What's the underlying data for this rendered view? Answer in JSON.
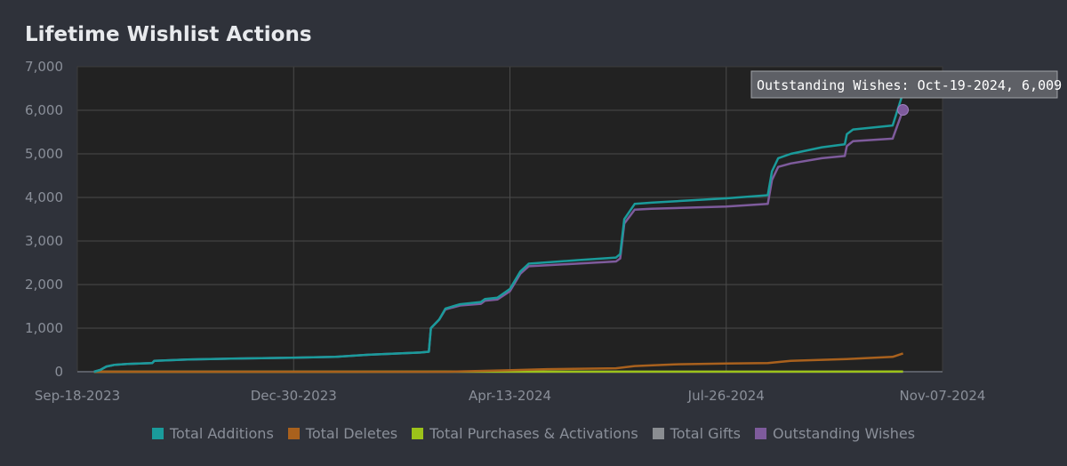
{
  "title": "Lifetime Wishlist Actions",
  "tooltip": "Outstanding Wishes: Oct-19-2024, 6,009",
  "colors": {
    "background": "#2f323a",
    "plot_background": "#222222",
    "grid": "#4a4a4a"
  },
  "chart_data": {
    "type": "line",
    "title": "Lifetime Wishlist Actions",
    "ylim": [
      0,
      7000
    ],
    "y_ticks": [
      "0",
      "1,000",
      "2,000",
      "3,000",
      "4,000",
      "5,000",
      "6,000",
      "7,000"
    ],
    "x_ticks": [
      "Sep-18-2023",
      "Dec-30-2023",
      "Apr-13-2024",
      "Jul-26-2024",
      "Nov-07-2024"
    ],
    "xlim": [
      "2023-09-18",
      "2024-11-07"
    ],
    "grid": true,
    "legend_position": "bottom",
    "series": [
      {
        "name": "Total Additions",
        "color": "#1a9b9b",
        "points": [
          [
            "2023-09-26",
            0
          ],
          [
            "2023-09-29",
            40
          ],
          [
            "2023-10-02",
            120
          ],
          [
            "2023-10-06",
            160
          ],
          [
            "2023-10-12",
            180
          ],
          [
            "2023-10-24",
            200
          ],
          [
            "2023-10-25",
            250
          ],
          [
            "2023-11-10",
            280
          ],
          [
            "2023-12-01",
            300
          ],
          [
            "2023-12-30",
            320
          ],
          [
            "2024-01-20",
            340
          ],
          [
            "2024-02-05",
            390
          ],
          [
            "2024-02-20",
            420
          ],
          [
            "2024-03-01",
            440
          ],
          [
            "2024-03-05",
            460
          ],
          [
            "2024-03-06",
            1000
          ],
          [
            "2024-03-10",
            1200
          ],
          [
            "2024-03-13",
            1450
          ],
          [
            "2024-03-20",
            1550
          ],
          [
            "2024-03-30",
            1600
          ],
          [
            "2024-04-01",
            1670
          ],
          [
            "2024-04-07",
            1700
          ],
          [
            "2024-04-13",
            1900
          ],
          [
            "2024-04-18",
            2300
          ],
          [
            "2024-04-22",
            2480
          ],
          [
            "2024-05-15",
            2560
          ],
          [
            "2024-06-03",
            2620
          ],
          [
            "2024-06-05",
            2700
          ],
          [
            "2024-06-07",
            3500
          ],
          [
            "2024-06-12",
            3850
          ],
          [
            "2024-06-20",
            3880
          ],
          [
            "2024-07-26",
            3980
          ],
          [
            "2024-08-15",
            4050
          ],
          [
            "2024-08-17",
            4600
          ],
          [
            "2024-08-20",
            4900
          ],
          [
            "2024-08-26",
            5000
          ],
          [
            "2024-09-10",
            5150
          ],
          [
            "2024-09-21",
            5220
          ],
          [
            "2024-09-22",
            5450
          ],
          [
            "2024-09-25",
            5560
          ],
          [
            "2024-10-14",
            5650
          ],
          [
            "2024-10-19",
            6400
          ]
        ]
      },
      {
        "name": "Total Deletes",
        "color": "#a9611d",
        "points": [
          [
            "2023-09-26",
            0
          ],
          [
            "2024-03-13",
            0
          ],
          [
            "2024-04-10",
            30
          ],
          [
            "2024-05-01",
            60
          ],
          [
            "2024-06-03",
            80
          ],
          [
            "2024-06-12",
            130
          ],
          [
            "2024-07-01",
            170
          ],
          [
            "2024-07-26",
            190
          ],
          [
            "2024-08-15",
            200
          ],
          [
            "2024-08-26",
            250
          ],
          [
            "2024-09-22",
            290
          ],
          [
            "2024-10-14",
            340
          ],
          [
            "2024-10-19",
            420
          ]
        ]
      },
      {
        "name": "Total Purchases & Activations",
        "color": "#9cc21a",
        "points": [
          [
            "2023-09-26",
            0
          ],
          [
            "2024-10-19",
            5
          ]
        ]
      },
      {
        "name": "Total Gifts",
        "color": "#8a8d91",
        "points": [
          [
            "2023-09-26",
            0
          ],
          [
            "2024-10-19",
            0
          ]
        ]
      },
      {
        "name": "Outstanding Wishes",
        "color": "#7e5b9c",
        "points": [
          [
            "2023-09-26",
            0
          ],
          [
            "2023-09-29",
            40
          ],
          [
            "2023-10-02",
            120
          ],
          [
            "2023-10-06",
            160
          ],
          [
            "2023-10-12",
            180
          ],
          [
            "2023-10-24",
            200
          ],
          [
            "2023-10-25",
            250
          ],
          [
            "2023-11-10",
            280
          ],
          [
            "2023-12-01",
            300
          ],
          [
            "2023-12-30",
            320
          ],
          [
            "2024-01-20",
            340
          ],
          [
            "2024-02-05",
            390
          ],
          [
            "2024-02-20",
            420
          ],
          [
            "2024-03-01",
            440
          ],
          [
            "2024-03-05",
            460
          ],
          [
            "2024-03-06",
            1000
          ],
          [
            "2024-03-10",
            1200
          ],
          [
            "2024-03-13",
            1430
          ],
          [
            "2024-03-20",
            1520
          ],
          [
            "2024-03-30",
            1560
          ],
          [
            "2024-04-01",
            1630
          ],
          [
            "2024-04-07",
            1660
          ],
          [
            "2024-04-13",
            1850
          ],
          [
            "2024-04-18",
            2250
          ],
          [
            "2024-04-22",
            2420
          ],
          [
            "2024-05-15",
            2480
          ],
          [
            "2024-06-03",
            2530
          ],
          [
            "2024-06-05",
            2600
          ],
          [
            "2024-06-07",
            3400
          ],
          [
            "2024-06-12",
            3720
          ],
          [
            "2024-06-20",
            3740
          ],
          [
            "2024-07-26",
            3790
          ],
          [
            "2024-08-15",
            3850
          ],
          [
            "2024-08-17",
            4400
          ],
          [
            "2024-08-20",
            4700
          ],
          [
            "2024-08-26",
            4780
          ],
          [
            "2024-09-10",
            4900
          ],
          [
            "2024-09-21",
            4950
          ],
          [
            "2024-09-22",
            5180
          ],
          [
            "2024-09-25",
            5290
          ],
          [
            "2024-10-14",
            5350
          ],
          [
            "2024-10-19",
            6009
          ]
        ]
      }
    ],
    "highlight": {
      "series": "Outstanding Wishes",
      "x": "2024-10-19",
      "y": 6009
    }
  }
}
